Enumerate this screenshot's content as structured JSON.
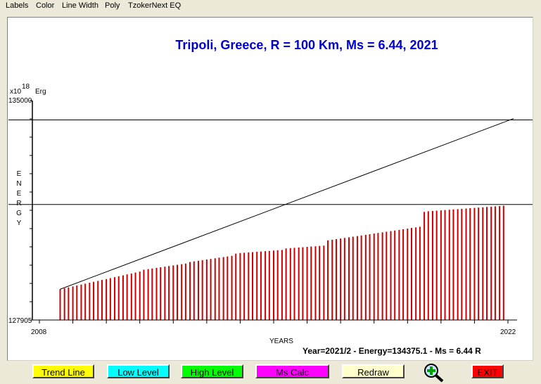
{
  "menu": [
    "Labels",
    "Color",
    "Line Width",
    "Poly",
    "TzokerNext EQ"
  ],
  "chart_data": {
    "type": "bar",
    "title": "Tripoli, Greece, R = 100 Km, Ms = 6.44, 2021",
    "ylabel_unit_prefix": "x10",
    "ylabel_exponent": "18",
    "ylabel_unit": "Erg",
    "ylabel_vertical": [
      "E",
      "N",
      "E",
      "R",
      "G",
      "Y"
    ],
    "xlabel": "YEARS",
    "ylim": [
      127905,
      135000
    ],
    "y_top_label": "135000",
    "y_bottom_label": "127905",
    "xlim": [
      2008,
      2022
    ],
    "x_start_label": "2008",
    "x_end_label": "2022",
    "x": [
      2008.62,
      2008.75,
      2008.87,
      2009.0,
      2009.12,
      2009.25,
      2009.37,
      2009.5,
      2009.62,
      2009.75,
      2009.87,
      2010.0,
      2010.12,
      2010.25,
      2010.37,
      2010.5,
      2010.62,
      2010.75,
      2010.87,
      2011.0,
      2011.12,
      2011.25,
      2011.37,
      2011.5,
      2011.62,
      2011.75,
      2011.87,
      2012.0,
      2012.12,
      2012.25,
      2012.37,
      2012.5,
      2012.62,
      2012.75,
      2012.87,
      2013.0,
      2013.12,
      2013.25,
      2013.37,
      2013.5,
      2013.62,
      2013.75,
      2013.87,
      2014.0,
      2014.12,
      2014.25,
      2014.37,
      2014.5,
      2014.62,
      2014.75,
      2014.87,
      2015.0,
      2015.12,
      2015.25,
      2015.37,
      2015.5,
      2015.62,
      2015.75,
      2015.87,
      2016.0,
      2016.12,
      2016.25,
      2016.37,
      2016.5,
      2016.62,
      2016.75,
      2016.87,
      2017.0,
      2017.12,
      2017.25,
      2017.37,
      2017.5,
      2017.62,
      2017.75,
      2017.87,
      2018.0,
      2018.12,
      2018.25,
      2018.37,
      2018.5,
      2018.62,
      2018.75,
      2018.87,
      2019.0,
      2019.12,
      2019.25,
      2019.37,
      2019.5,
      2019.62,
      2019.75,
      2019.87,
      2020.0,
      2020.12,
      2020.25,
      2020.37,
      2020.5,
      2020.62,
      2020.75,
      2020.87,
      2021.0,
      2021.12,
      2021.25,
      2021.37,
      2021.5,
      2021.62,
      2021.75,
      2021.87
    ],
    "values": [
      128900,
      128930,
      128960,
      128990,
      129020,
      129050,
      129080,
      129110,
      129140,
      129170,
      129200,
      129230,
      129260,
      129290,
      129320,
      129350,
      129380,
      129410,
      129440,
      129470,
      129530,
      129550,
      129570,
      129590,
      129610,
      129630,
      129650,
      129670,
      129690,
      129710,
      129730,
      129780,
      129800,
      129820,
      129840,
      129860,
      129880,
      129900,
      129920,
      129940,
      129960,
      129980,
      130050,
      130070,
      130080,
      130090,
      130100,
      130110,
      130120,
      130130,
      130140,
      130150,
      130160,
      130170,
      130220,
      130230,
      130240,
      130250,
      130260,
      130270,
      130280,
      130290,
      130300,
      130310,
      130480,
      130500,
      130520,
      130540,
      130560,
      130580,
      130600,
      130620,
      130640,
      130660,
      130680,
      130700,
      130720,
      130740,
      130760,
      130780,
      130800,
      130820,
      130840,
      130860,
      130880,
      130900,
      130920,
      131400,
      131420,
      131430,
      131440,
      131450,
      131460,
      131470,
      131480,
      131490,
      131500,
      131510,
      131520,
      131530,
      131540,
      131550,
      131560,
      131570,
      131580,
      131590,
      131600
    ],
    "trend_line": {
      "x": [
        2008.62,
        2022.0
      ],
      "y": [
        128900,
        134350
      ]
    },
    "high_level": 134375.1,
    "low_level": 131640,
    "grid": false,
    "bar_color": "#cc0000"
  },
  "status_text": "Year=2021/2 - Energy=134375.1 - Ms = 6.44 R",
  "buttons": {
    "trend_line": {
      "label": "Trend Line",
      "color": "#ffff00"
    },
    "low_level": {
      "label": "Low Level",
      "color": "#00ffff"
    },
    "high_level": {
      "label": "High Level",
      "color": "#00ff00"
    },
    "ms_calc": {
      "label": "Ms Calc",
      "color": "#ff00ff"
    },
    "redraw": {
      "label": "Redraw",
      "color": "#ffffcc"
    },
    "zoom": {
      "icon": "zoom-in-icon"
    },
    "exit": {
      "label": "EXIT",
      "color": "#ff0000"
    }
  },
  "colors": {
    "title": "#0000cc",
    "bars": "#cc0000",
    "axis": "#000000"
  }
}
